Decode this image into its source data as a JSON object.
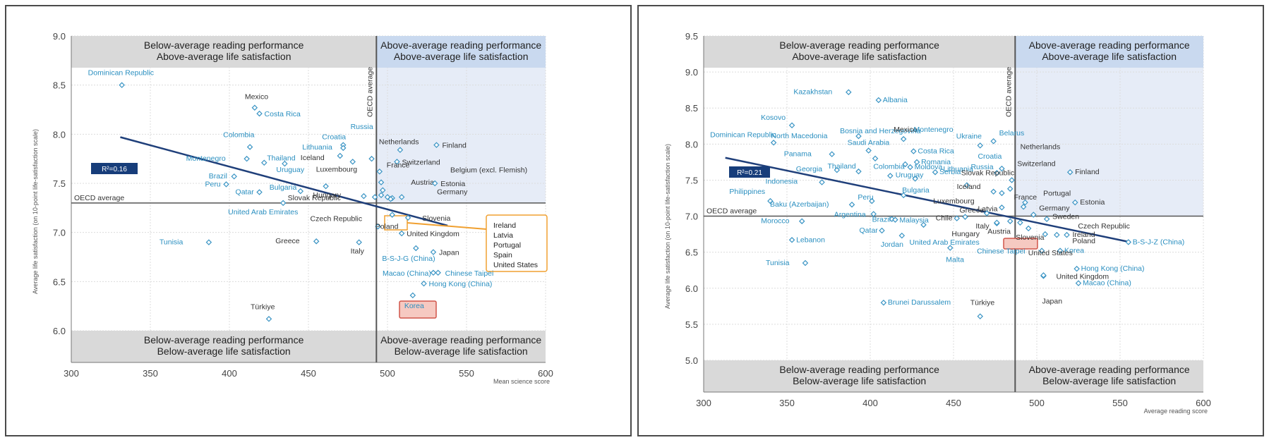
{
  "chart_data": [
    {
      "type": "scatter",
      "ylabel": "Average life satisfaction (on 10-point life-satisfaction scale)",
      "xlabel": "Mean science score",
      "xlim": [
        300,
        600
      ],
      "ylim": [
        6.0,
        9.0
      ],
      "xticks": [
        "300",
        "350",
        "400",
        "450",
        "500",
        "550",
        "600"
      ],
      "yticks": [
        "6.0",
        "6.5",
        "7.0",
        "7.5",
        "8.0",
        "8.5",
        "9.0"
      ],
      "oecd_x": 493,
      "oecd_y": 7.3,
      "oecd_h_label": "OECD average",
      "oecd_v_label": "OECD average",
      "r2": "R²=0.16",
      "trend": [
        [
          331,
          7.97
        ],
        [
          538,
          7.07
        ]
      ],
      "quadrants": {
        "top_left": [
          "Below-average reading performance",
          "Above-average life satisfaction"
        ],
        "top_right": [
          "Above-average reading performance",
          "Above-average life satisfaction"
        ],
        "bottom_left": [
          "Below-average reading performance",
          "Below-average life satisfaction"
        ],
        "bottom_right": [
          "Above-average reading performance",
          "Below-average life satisfaction"
        ]
      },
      "highlight": "Korea",
      "group_box_labels": [
        "Ireland",
        "Latvia",
        "Portugal",
        "Spain",
        "United States"
      ],
      "points": [
        {
          "name": "Dominican Republic",
          "x": 332,
          "y": 8.5,
          "color": "#2a8fc0"
        },
        {
          "name": "Mexico",
          "x": 416,
          "y": 8.27,
          "color": "#333333"
        },
        {
          "name": "Costa Rica",
          "x": 419,
          "y": 8.21,
          "color": "#2a8fc0"
        },
        {
          "name": "Colombia",
          "x": 413,
          "y": 7.87,
          "color": "#2a8fc0"
        },
        {
          "name": "Montenegro",
          "x": 411,
          "y": 7.75,
          "color": "#2a8fc0"
        },
        {
          "name": "Thailand",
          "x": 422,
          "y": 7.71,
          "color": "#2a8fc0"
        },
        {
          "name": "Uruguay",
          "x": 435,
          "y": 7.7,
          "color": "#2a8fc0"
        },
        {
          "name": "Brazil",
          "x": 403,
          "y": 7.57,
          "color": "#2a8fc0"
        },
        {
          "name": "Peru",
          "x": 398,
          "y": 7.49,
          "color": "#2a8fc0"
        },
        {
          "name": "Qatar",
          "x": 419,
          "y": 7.41,
          "color": "#2a8fc0"
        },
        {
          "name": "Bulgaria",
          "x": 445,
          "y": 7.42,
          "color": "#2a8fc0"
        },
        {
          "name": "United Arab Emirates",
          "x": 434,
          "y": 7.3,
          "color": "#2a8fc0"
        },
        {
          "name": "Croatia",
          "x": 472,
          "y": 7.89,
          "color": "#2a8fc0"
        },
        {
          "name": "Lithuania",
          "x": 472,
          "y": 7.86,
          "color": "#2a8fc0"
        },
        {
          "name": "Iceland",
          "x": 470,
          "y": 7.78,
          "color": "#333333"
        },
        {
          "name": "Luxembourg",
          "x": 478,
          "y": 7.72,
          "color": "#333333"
        },
        {
          "name": "Slovak Republic",
          "x": 461,
          "y": 7.47,
          "color": "#333333"
        },
        {
          "name": "Russia",
          "x": 490,
          "y": 7.75,
          "color": "#2a8fc0"
        },
        {
          "name": "Hungary",
          "x": 485,
          "y": 7.37,
          "color": "#333333"
        },
        {
          "name": "Czech Republic",
          "x": 494,
          "y": 7.06,
          "color": "#333333"
        },
        {
          "name": "Greece",
          "x": 455,
          "y": 6.91,
          "color": "#333333"
        },
        {
          "name": "Italy",
          "x": 482,
          "y": 6.9,
          "color": "#333333"
        },
        {
          "name": "Tunisia",
          "x": 387,
          "y": 6.9,
          "color": "#2a8fc0"
        },
        {
          "name": "Türkiye",
          "x": 425,
          "y": 6.12,
          "color": "#333333"
        },
        {
          "name": "Netherlands",
          "x": 508,
          "y": 7.84,
          "color": "#333333"
        },
        {
          "name": "Finland",
          "x": 531,
          "y": 7.89,
          "color": "#333333"
        },
        {
          "name": "Switzerland",
          "x": 506,
          "y": 7.72,
          "color": "#333333"
        },
        {
          "name": "France",
          "x": 495,
          "y": 7.62,
          "color": "#333333"
        },
        {
          "name": "Belgium (excl. Flemish)",
          "x": 496,
          "y": 7.51,
          "color": "#333333"
        },
        {
          "name": "Austria",
          "x": 497,
          "y": 7.43,
          "color": "#333333"
        },
        {
          "name": "Estonia",
          "x": 530,
          "y": 7.5,
          "color": "#333333"
        },
        {
          "name": "Germany",
          "x": 509,
          "y": 7.36,
          "color": "#333333"
        },
        {
          "name": "Ireland",
          "x": 496,
          "y": 7.38,
          "color": "#333333"
        },
        {
          "name": "Latvia",
          "x": 492,
          "y": 7.36,
          "color": "#333333"
        },
        {
          "name": "Portugal",
          "x": 500,
          "y": 7.36,
          "color": "#333333"
        },
        {
          "name": "Spain",
          "x": 503,
          "y": 7.35,
          "color": "#333333"
        },
        {
          "name": "United States",
          "x": 502,
          "y": 7.34,
          "color": "#333333"
        },
        {
          "name": "Poland",
          "x": 503,
          "y": 7.18,
          "color": "#333333"
        },
        {
          "name": "Slovenia",
          "x": 513,
          "y": 7.15,
          "color": "#333333"
        },
        {
          "name": "United Kingdom",
          "x": 509,
          "y": 6.99,
          "color": "#333333"
        },
        {
          "name": "Japan",
          "x": 529,
          "y": 6.8,
          "color": "#333333"
        },
        {
          "name": "B-S-J-G (China)",
          "x": 518,
          "y": 6.84,
          "color": "#2a8fc0"
        },
        {
          "name": "Macao (China)",
          "x": 529,
          "y": 6.59,
          "color": "#2a8fc0"
        },
        {
          "name": "Chinese Taipei",
          "x": 532,
          "y": 6.59,
          "color": "#2a8fc0"
        },
        {
          "name": "Hong Kong (China)",
          "x": 523,
          "y": 6.48,
          "color": "#2a8fc0"
        },
        {
          "name": "Korea",
          "x": 516,
          "y": 6.36,
          "color": "#2a8fc0"
        }
      ]
    },
    {
      "type": "scatter",
      "ylabel": "Average life satisfaction (on 10-point life-satisfaction scale)",
      "xlabel": "Average reading score",
      "xlim": [
        300,
        600
      ],
      "ylim": [
        5.0,
        9.5
      ],
      "xticks": [
        "300",
        "350",
        "400",
        "450",
        "500",
        "550",
        "600"
      ],
      "yticks": [
        "5.0",
        "5.5",
        "6.0",
        "6.5",
        "7.0",
        "7.5",
        "8.0",
        "8.5",
        "9.0",
        "9.5"
      ],
      "oecd_x": 487,
      "oecd_y": 7.0,
      "oecd_h_label": "OECD average",
      "oecd_v_label": "OECD average",
      "r2": "R²=0.21",
      "trend": [
        [
          313,
          7.81
        ],
        [
          556,
          6.64
        ]
      ],
      "quadrants": {
        "top_left": [
          "Below-average reading performance",
          "Above-average life satisfaction"
        ],
        "top_right": [
          "Above-average reading performance",
          "Above-average life satisfaction"
        ],
        "bottom_left": [
          "Below-average reading performance",
          "Below-average life satisfaction"
        ],
        "bottom_right": [
          "Above-average reading performance",
          "Below-average life satisfaction"
        ]
      },
      "highlight": "Korea",
      "points": [
        {
          "name": "Dominican Republic",
          "x": 342,
          "y": 8.02,
          "color": "#2a8fc0"
        },
        {
          "name": "Kosovo",
          "x": 353,
          "y": 8.26,
          "color": "#2a8fc0"
        },
        {
          "name": "Kazakhstan",
          "x": 387,
          "y": 8.72,
          "color": "#2a8fc0"
        },
        {
          "name": "Albania",
          "x": 405,
          "y": 8.61,
          "color": "#2a8fc0"
        },
        {
          "name": "Bosnia and Herzegovina",
          "x": 403,
          "y": 7.8,
          "color": "#2a8fc0"
        },
        {
          "name": "North Macedonia",
          "x": 393,
          "y": 8.11,
          "color": "#2a8fc0"
        },
        {
          "name": "Mexico",
          "x": 420,
          "y": 8.07,
          "color": "#333333"
        },
        {
          "name": "Montenegro",
          "x": 421,
          "y": 7.72,
          "color": "#2a8fc0"
        },
        {
          "name": "Saudi Arabia",
          "x": 399,
          "y": 7.91,
          "color": "#2a8fc0"
        },
        {
          "name": "Panama",
          "x": 377,
          "y": 7.86,
          "color": "#2a8fc0"
        },
        {
          "name": "Costa Rica",
          "x": 426,
          "y": 7.9,
          "color": "#2a8fc0"
        },
        {
          "name": "Romania",
          "x": 428,
          "y": 7.75,
          "color": "#2a8fc0"
        },
        {
          "name": "Moldova",
          "x": 424,
          "y": 7.68,
          "color": "#2a8fc0"
        },
        {
          "name": "Ukraine",
          "x": 466,
          "y": 7.98,
          "color": "#2a8fc0"
        },
        {
          "name": "Belarus",
          "x": 474,
          "y": 8.04,
          "color": "#2a8fc0"
        },
        {
          "name": "Georgia",
          "x": 380,
          "y": 7.64,
          "color": "#2a8fc0"
        },
        {
          "name": "Thailand",
          "x": 393,
          "y": 7.62,
          "color": "#2a8fc0"
        },
        {
          "name": "Colombia",
          "x": 412,
          "y": 7.56,
          "color": "#2a8fc0"
        },
        {
          "name": "Indonesia",
          "x": 371,
          "y": 7.47,
          "color": "#2a8fc0"
        },
        {
          "name": "Croatia",
          "x": 479,
          "y": 7.66,
          "color": "#2a8fc0"
        },
        {
          "name": "Lithuania",
          "x": 476,
          "y": 7.6,
          "color": "#2a8fc0"
        },
        {
          "name": "Serbia",
          "x": 439,
          "y": 7.61,
          "color": "#2a8fc0"
        },
        {
          "name": "Russia",
          "x": 479,
          "y": 7.32,
          "color": "#2a8fc0"
        },
        {
          "name": "Uruguay",
          "x": 427,
          "y": 7.52,
          "color": "#2a8fc0"
        },
        {
          "name": "Slovak Republic",
          "x": 458,
          "y": 7.43,
          "color": "#333333"
        },
        {
          "name": "Iceland",
          "x": 474,
          "y": 7.34,
          "color": "#333333"
        },
        {
          "name": "Netherlands",
          "x": 485,
          "y": 7.5,
          "color": "#333333"
        },
        {
          "name": "Philippines",
          "x": 340,
          "y": 7.21,
          "color": "#2a8fc0"
        },
        {
          "name": "Peru",
          "x": 401,
          "y": 7.21,
          "color": "#2a8fc0"
        },
        {
          "name": "Bulgaria",
          "x": 420,
          "y": 7.29,
          "color": "#2a8fc0"
        },
        {
          "name": "Baku (Azerbaijan)",
          "x": 389,
          "y": 7.16,
          "color": "#2a8fc0"
        },
        {
          "name": "Argentina",
          "x": 402,
          "y": 7.03,
          "color": "#2a8fc0"
        },
        {
          "name": "Brazil",
          "x": 413,
          "y": 6.96,
          "color": "#2a8fc0"
        },
        {
          "name": "Malaysia",
          "x": 415,
          "y": 6.95,
          "color": "#2a8fc0"
        },
        {
          "name": "Latvia",
          "x": 479,
          "y": 7.12,
          "color": "#333333"
        },
        {
          "name": "Luxembourg",
          "x": 470,
          "y": 7.04,
          "color": "#333333"
        },
        {
          "name": "Chile",
          "x": 452,
          "y": 6.97,
          "color": "#333333"
        },
        {
          "name": "Greece",
          "x": 457,
          "y": 6.99,
          "color": "#333333"
        },
        {
          "name": "Switzerland",
          "x": 484,
          "y": 7.38,
          "color": "#333333"
        },
        {
          "name": "Finland",
          "x": 520,
          "y": 7.61,
          "color": "#333333"
        },
        {
          "name": "France",
          "x": 493,
          "y": 7.19,
          "color": "#333333"
        },
        {
          "name": "Portugal",
          "x": 492,
          "y": 7.13,
          "color": "#333333"
        },
        {
          "name": "Estonia",
          "x": 523,
          "y": 7.19,
          "color": "#333333"
        },
        {
          "name": "Germany",
          "x": 498,
          "y": 7.02,
          "color": "#333333"
        },
        {
          "name": "Sweden",
          "x": 506,
          "y": 6.96,
          "color": "#333333"
        },
        {
          "name": "Czech Republic",
          "x": 490,
          "y": 6.91,
          "color": "#333333"
        },
        {
          "name": "Morocco",
          "x": 359,
          "y": 6.93,
          "color": "#2a8fc0"
        },
        {
          "name": "Lebanon",
          "x": 353,
          "y": 6.67,
          "color": "#2a8fc0"
        },
        {
          "name": "Qatar",
          "x": 407,
          "y": 6.8,
          "color": "#2a8fc0"
        },
        {
          "name": "Jordan",
          "x": 419,
          "y": 6.73,
          "color": "#2a8fc0"
        },
        {
          "name": "United Arab Emirates",
          "x": 432,
          "y": 6.88,
          "color": "#2a8fc0"
        },
        {
          "name": "Malta",
          "x": 448,
          "y": 6.56,
          "color": "#2a8fc0"
        },
        {
          "name": "Hungary",
          "x": 476,
          "y": 6.9,
          "color": "#333333"
        },
        {
          "name": "Italy",
          "x": 476,
          "y": 6.91,
          "color": "#333333"
        },
        {
          "name": "Austria",
          "x": 484,
          "y": 6.93,
          "color": "#333333"
        },
        {
          "name": "Slovenia",
          "x": 495,
          "y": 6.83,
          "color": "#333333"
        },
        {
          "name": "Chinese Taipei",
          "x": 503,
          "y": 6.52,
          "color": "#2a8fc0"
        },
        {
          "name": "Ireland",
          "x": 518,
          "y": 6.74,
          "color": "#333333"
        },
        {
          "name": "Poland",
          "x": 512,
          "y": 6.74,
          "color": "#333333"
        },
        {
          "name": "Korea",
          "x": 514,
          "y": 6.52,
          "color": "#2a8fc0"
        },
        {
          "name": "United States",
          "x": 505,
          "y": 6.75,
          "color": "#333333"
        },
        {
          "name": "B-S-J-Z (China)",
          "x": 555,
          "y": 6.64,
          "color": "#2a8fc0"
        },
        {
          "name": "Hong Kong (China)",
          "x": 524,
          "y": 6.27,
          "color": "#2a8fc0"
        },
        {
          "name": "Macao (China)",
          "x": 525,
          "y": 6.07,
          "color": "#2a8fc0"
        },
        {
          "name": "United Kingdom",
          "x": 504,
          "y": 6.17,
          "color": "#333333"
        },
        {
          "name": "Japan",
          "x": 504,
          "y": 6.18,
          "color": "#333333"
        },
        {
          "name": "Tunisia",
          "x": 361,
          "y": 6.35,
          "color": "#2a8fc0"
        },
        {
          "name": "Brunei Darussalem",
          "x": 408,
          "y": 5.8,
          "color": "#2a8fc0"
        },
        {
          "name": "Türkiye",
          "x": 466,
          "y": 5.61,
          "color": "#333333"
        }
      ]
    }
  ]
}
